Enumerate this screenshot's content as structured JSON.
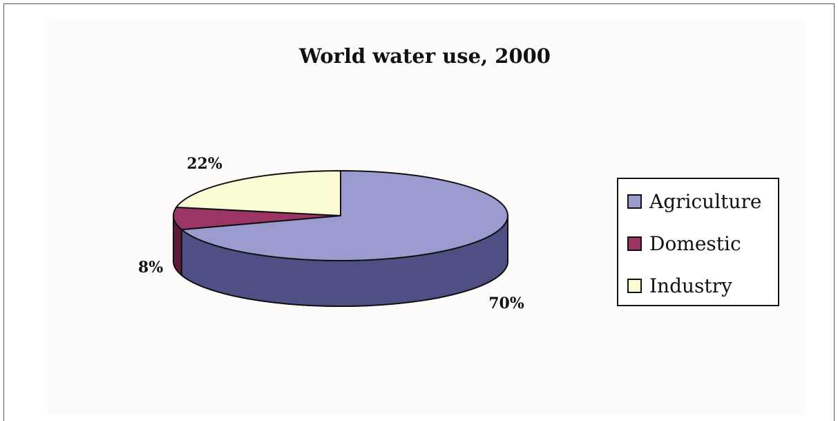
{
  "chart_data": {
    "type": "pie",
    "style": "3d",
    "title": "World water use, 2000",
    "categories": [
      "Agriculture",
      "Domestic",
      "Industry"
    ],
    "values": [
      70,
      8,
      22
    ],
    "data_labels": [
      "70%",
      "8%",
      "22%"
    ],
    "colors": {
      "Agriculture": {
        "top": "#9b9bd0",
        "side": "#4f4f86"
      },
      "Domestic": {
        "top": "#9c3565",
        "side": "#5e1a39"
      },
      "Industry": {
        "top": "#fbfbd4",
        "side": "#c8c8a0"
      }
    },
    "legend": {
      "placement": "right",
      "entries": [
        "Agriculture",
        "Domestic",
        "Industry"
      ]
    }
  }
}
